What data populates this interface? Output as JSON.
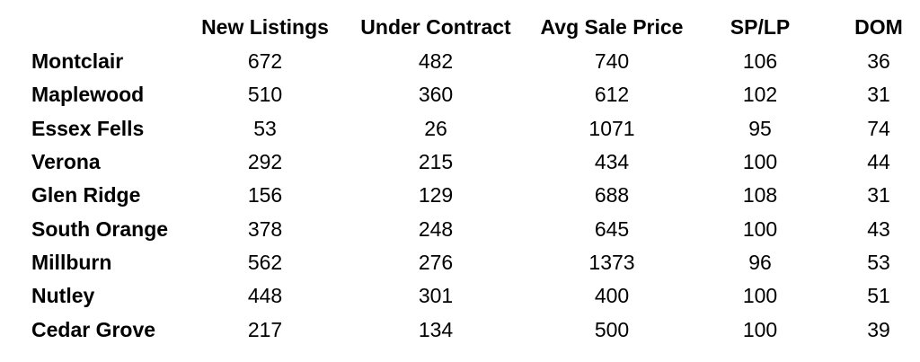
{
  "chart_data": {
    "type": "table",
    "columns": [
      "New Listings",
      "Under Contract",
      "Avg Sale Price",
      "SP/LP",
      "DOM"
    ],
    "rows": [
      {
        "label": "Montclair",
        "values": [
          672,
          482,
          740,
          106,
          36
        ]
      },
      {
        "label": "Maplewood",
        "values": [
          510,
          360,
          612,
          102,
          31
        ]
      },
      {
        "label": "Essex Fells",
        "values": [
          53,
          26,
          1071,
          95,
          74
        ]
      },
      {
        "label": "Verona",
        "values": [
          292,
          215,
          434,
          100,
          44
        ]
      },
      {
        "label": "Glen Ridge",
        "values": [
          156,
          129,
          688,
          108,
          31
        ]
      },
      {
        "label": "South Orange",
        "values": [
          378,
          248,
          645,
          100,
          43
        ]
      },
      {
        "label": "Millburn",
        "values": [
          562,
          276,
          1373,
          96,
          53
        ]
      },
      {
        "label": "Nutley",
        "values": [
          448,
          301,
          400,
          100,
          51
        ]
      },
      {
        "label": "Cedar Grove",
        "values": [
          217,
          134,
          500,
          100,
          39
        ]
      }
    ]
  }
}
